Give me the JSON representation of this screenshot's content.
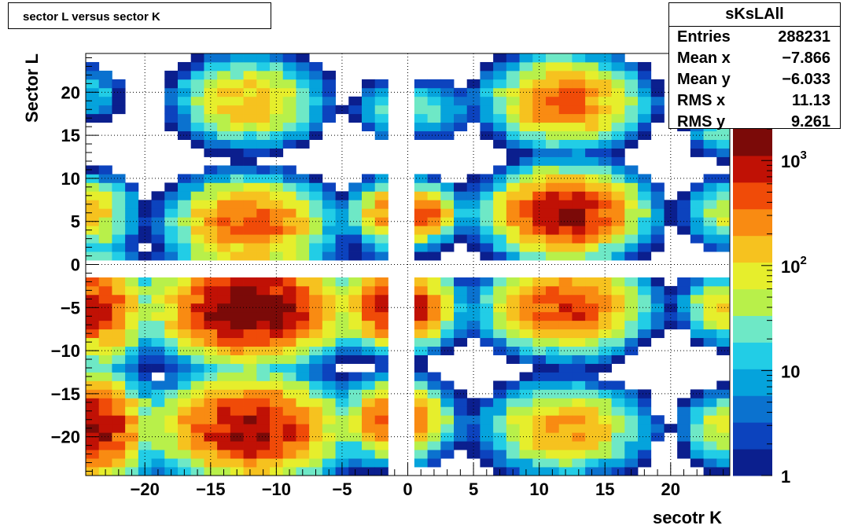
{
  "title": "sector L versus sector K",
  "stats": {
    "name": "sKsLAll",
    "rows": [
      {
        "label": "Entries",
        "value": "288231"
      },
      {
        "label": "Mean x",
        "value": "−7.866"
      },
      {
        "label": "Mean y",
        "value": "−6.033"
      },
      {
        "label": "RMS x",
        "value": "11.13"
      },
      {
        "label": "RMS y",
        "value": "9.261"
      }
    ]
  },
  "chart_data": {
    "type": "heatmap",
    "title": "sector L versus sector K",
    "xlabel": "secotr K",
    "ylabel": "Sector L",
    "xlim": [
      -24.5,
      24.5
    ],
    "ylim": [
      -24.5,
      24.5
    ],
    "x_ticks": [
      -20,
      -15,
      -10,
      -5,
      0,
      5,
      10,
      15,
      20
    ],
    "y_ticks": [
      20,
      15,
      10,
      5,
      0,
      -5,
      -10,
      -15,
      -20
    ],
    "x_tick_labels": [
      "−20",
      "−15",
      "−10",
      "−5",
      "0",
      "5",
      "10",
      "15",
      "20"
    ],
    "y_tick_labels": [
      "20",
      "15",
      "10",
      "5",
      "0",
      "−5",
      "−10",
      "−15",
      "−20"
    ],
    "grid": true,
    "color_scale": "log",
    "z_range": [
      1,
      2000
    ],
    "z_tick_values": [
      1,
      10,
      100,
      1000
    ],
    "z_tick_labels": [
      {
        "base": "1",
        "exp": ""
      },
      {
        "base": "10",
        "exp": ""
      },
      {
        "base": "10",
        "exp": "2"
      },
      {
        "base": "10",
        "exp": "3"
      }
    ],
    "empty_rows_cols": [
      -1,
      0
    ],
    "clusters": [
      {
        "x": -24,
        "y": 20,
        "peak": 15,
        "sx": 1.0,
        "sy": 1.5
      },
      {
        "x": -12,
        "y": 19,
        "peak": 170,
        "sx": 2.2,
        "sy": 2.0
      },
      {
        "x": -1,
        "y": 18,
        "peak": 30,
        "sx": 1.2,
        "sy": 1.5
      },
      {
        "x": 2,
        "y": 18,
        "peak": 20,
        "sx": 1.2,
        "sy": 1.5
      },
      {
        "x": 12,
        "y": 19,
        "peak": 400,
        "sx": 2.2,
        "sy": 2.0
      },
      {
        "x": 24,
        "y": 16,
        "peak": 30,
        "sx": 1.2,
        "sy": 1.5
      },
      {
        "x": -24,
        "y": 6,
        "peak": 130,
        "sx": 1.3,
        "sy": 1.8
      },
      {
        "x": -12,
        "y": 5,
        "peak": 450,
        "sx": 2.3,
        "sy": 2.0
      },
      {
        "x": -1,
        "y": 6,
        "peak": 400,
        "sx": 1.2,
        "sy": 1.5
      },
      {
        "x": 1,
        "y": 6,
        "peak": 500,
        "sx": 1.1,
        "sy": 1.3
      },
      {
        "x": 12,
        "y": 6,
        "peak": 1200,
        "sx": 2.2,
        "sy": 1.9
      },
      {
        "x": 24,
        "y": 6,
        "peak": 60,
        "sx": 1.2,
        "sy": 1.6
      },
      {
        "x": -24,
        "y": -5,
        "peak": 800,
        "sx": 1.6,
        "sy": 2.3
      },
      {
        "x": -12,
        "y": -5,
        "peak": 2000,
        "sx": 2.6,
        "sy": 2.3
      },
      {
        "x": -1,
        "y": -5,
        "peak": 1000,
        "sx": 1.5,
        "sy": 1.8
      },
      {
        "x": 1,
        "y": -5,
        "peak": 250,
        "sx": 1.2,
        "sy": 1.6
      },
      {
        "x": 12,
        "y": -5,
        "peak": 600,
        "sx": 2.3,
        "sy": 2.0
      },
      {
        "x": 24,
        "y": -5,
        "peak": 120,
        "sx": 1.3,
        "sy": 1.6
      },
      {
        "x": -24,
        "y": -19,
        "peak": 1200,
        "sx": 1.6,
        "sy": 2.4
      },
      {
        "x": -12,
        "y": -19,
        "peak": 1100,
        "sx": 2.6,
        "sy": 2.3
      },
      {
        "x": -1,
        "y": -18,
        "peak": 600,
        "sx": 1.4,
        "sy": 1.8
      },
      {
        "x": 1,
        "y": -18,
        "peak": 80,
        "sx": 1.2,
        "sy": 1.5
      },
      {
        "x": 12,
        "y": -19,
        "peak": 250,
        "sx": 2.3,
        "sy": 2.0
      },
      {
        "x": 24,
        "y": -19,
        "peak": 80,
        "sx": 1.3,
        "sy": 1.7
      }
    ],
    "colors": {
      "palette": [
        "#0b1f8e",
        "#0c43be",
        "#0b72cf",
        "#05a3dc",
        "#22cde6",
        "#6ee8c6",
        "#b8f04a",
        "#e6ee2c",
        "#f6c21f",
        "#f98b12",
        "#f04b08",
        "#c01105",
        "#7b0a08"
      ]
    }
  }
}
